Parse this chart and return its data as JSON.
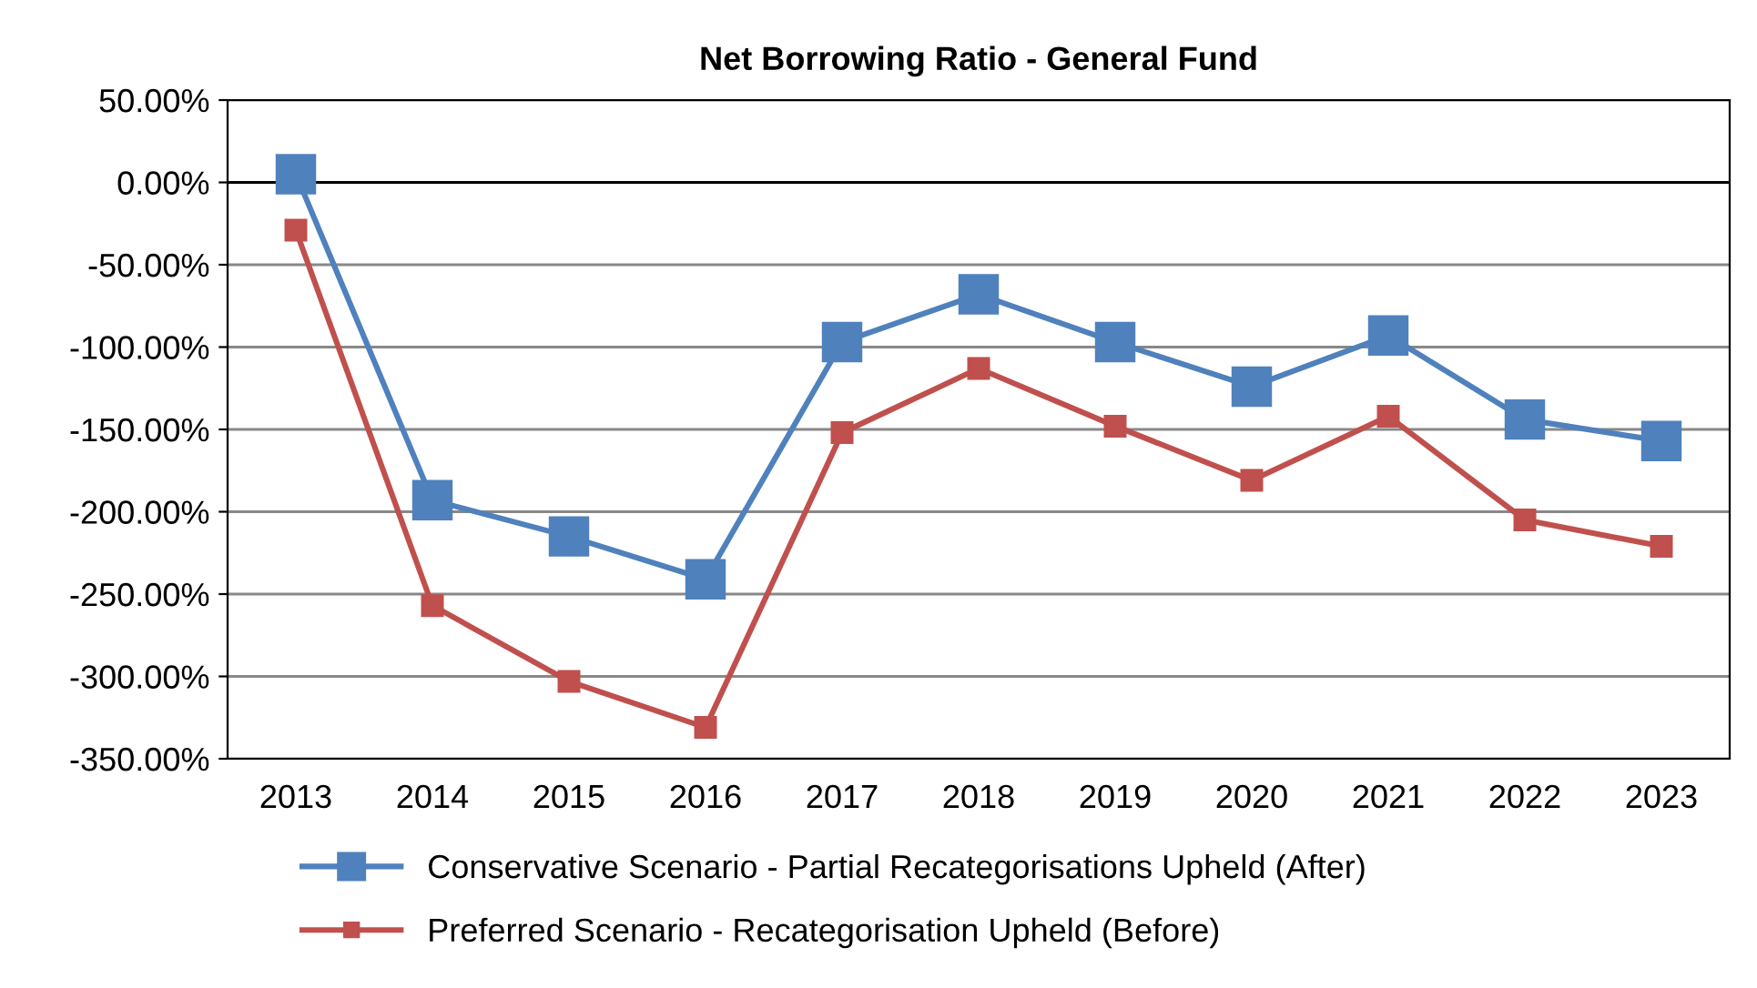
{
  "chart_data": {
    "type": "line",
    "title": "Net Borrowing Ratio - General Fund",
    "categories": [
      "2013",
      "2014",
      "2015",
      "2016",
      "2017",
      "2018",
      "2019",
      "2020",
      "2021",
      "2022",
      "2023"
    ],
    "series": [
      {
        "name": "Conservative Scenario - Partial Recategorisations Upheld (After)",
        "color": "#4f81bd",
        "values": [
          5,
          -193,
          -215,
          -241,
          -97,
          -68,
          -97,
          -124,
          -93,
          -144,
          -157
        ]
      },
      {
        "name": "Preferred Scenario - Recategorisation Upheld (Before)",
        "color": "#c0504d",
        "values": [
          -29,
          -257,
          -303,
          -331,
          -152,
          -113,
          -148,
          -181,
          -142,
          -205,
          -221
        ]
      }
    ],
    "ylim": [
      -350,
      50
    ],
    "yticks": [
      {
        "value": 50,
        "label": "50.00%"
      },
      {
        "value": 0,
        "label": "0.00%"
      },
      {
        "value": -50,
        "label": "-50.00%"
      },
      {
        "value": -100,
        "label": "-100.00%"
      },
      {
        "value": -150,
        "label": "-150.00%"
      },
      {
        "value": -200,
        "label": "-200.00%"
      },
      {
        "value": -250,
        "label": "-250.00%"
      },
      {
        "value": -300,
        "label": "-300.00%"
      },
      {
        "value": -350,
        "label": "-350.00%"
      }
    ],
    "grid": "y",
    "legend": "bottom",
    "marker": "square",
    "line_style": "solid"
  }
}
